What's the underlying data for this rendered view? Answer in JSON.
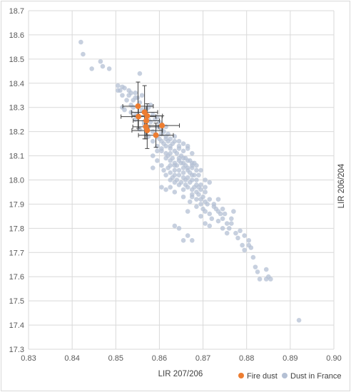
{
  "chart_data": {
    "type": "scatter",
    "xlabel": "LIR 207/206",
    "ylabel": "LIR 206/204",
    "xlim": [
      0.83,
      0.9
    ],
    "ylim": [
      17.3,
      18.7
    ],
    "x_ticks": [
      "0.83",
      "0.84",
      "0.85",
      "0.86",
      "0.87",
      "0.88",
      "0.89",
      "0.90"
    ],
    "y_ticks": [
      "17.3",
      "17.4",
      "17.5",
      "17.6",
      "17.7",
      "17.8",
      "17.9",
      "18.0",
      "18.1",
      "18.2",
      "18.3",
      "18.4",
      "18.5",
      "18.6",
      "18.7"
    ],
    "grid": true,
    "legend_position": "bottom-right",
    "colors": {
      "fire_dust": "#ed7d31",
      "dust_in_france": "#b4c0d4",
      "error_bar": "#404040",
      "grid": "#d9d9d9"
    },
    "series": [
      {
        "name": "Fire dust",
        "points": [
          [
            0.8551,
            18.305,
            0.0035,
            0.1
          ],
          [
            0.8566,
            18.28,
            0.003,
            0.11
          ],
          [
            0.8552,
            18.262,
            0.004,
            0.048
          ],
          [
            0.8572,
            18.265,
            0.0035,
            0.05
          ],
          [
            0.857,
            18.245,
            0.003,
            0.06
          ],
          [
            0.8569,
            18.22,
            0.003,
            0.05
          ],
          [
            0.8572,
            18.205,
            0.0035,
            0.075
          ],
          [
            0.8606,
            18.225,
            0.004,
            0.04
          ],
          [
            0.8592,
            18.185,
            0.004,
            0.05
          ]
        ]
      },
      {
        "name": "Dust in France",
        "points": [
          [
            0.842,
            18.57
          ],
          [
            0.8425,
            18.52
          ],
          [
            0.8445,
            18.46
          ],
          [
            0.8465,
            18.49
          ],
          [
            0.847,
            18.47
          ],
          [
            0.8485,
            18.46
          ],
          [
            0.8505,
            18.39
          ],
          [
            0.851,
            18.37
          ],
          [
            0.8515,
            18.385
          ],
          [
            0.852,
            18.38
          ],
          [
            0.853,
            18.37
          ],
          [
            0.853,
            18.35
          ],
          [
            0.854,
            18.33
          ],
          [
            0.854,
            18.3
          ],
          [
            0.8555,
            18.44
          ],
          [
            0.855,
            18.34
          ],
          [
            0.8555,
            18.32
          ],
          [
            0.856,
            18.35
          ],
          [
            0.8545,
            18.36
          ],
          [
            0.8515,
            18.3
          ],
          [
            0.852,
            18.29
          ],
          [
            0.8575,
            18.3
          ],
          [
            0.858,
            18.31
          ],
          [
            0.857,
            18.29
          ],
          [
            0.8535,
            18.28
          ],
          [
            0.856,
            18.29
          ],
          [
            0.8575,
            18.25
          ],
          [
            0.8585,
            18.27
          ],
          [
            0.859,
            18.25
          ],
          [
            0.858,
            18.24
          ],
          [
            0.8595,
            18.22
          ],
          [
            0.86,
            18.24
          ],
          [
            0.8605,
            18.21
          ],
          [
            0.861,
            18.2
          ],
          [
            0.8585,
            18.2
          ],
          [
            0.862,
            18.19
          ],
          [
            0.8595,
            18.18
          ],
          [
            0.86,
            18.17
          ],
          [
            0.8605,
            18.16
          ],
          [
            0.861,
            18.15
          ],
          [
            0.8615,
            18.14
          ],
          [
            0.862,
            18.16
          ],
          [
            0.8625,
            18.13
          ],
          [
            0.863,
            18.15
          ],
          [
            0.8635,
            18.12
          ],
          [
            0.862,
            18.1
          ],
          [
            0.863,
            18.09
          ],
          [
            0.864,
            18.11
          ],
          [
            0.8645,
            18.08
          ],
          [
            0.864,
            18.06
          ],
          [
            0.865,
            18.07
          ],
          [
            0.8655,
            18.05
          ],
          [
            0.866,
            18.06
          ],
          [
            0.8665,
            18.04
          ],
          [
            0.867,
            18.03
          ],
          [
            0.8675,
            18.05
          ],
          [
            0.868,
            18.02
          ],
          [
            0.8645,
            18.13
          ],
          [
            0.865,
            18.1
          ],
          [
            0.8665,
            18.13
          ],
          [
            0.866,
            18.09
          ],
          [
            0.867,
            18.08
          ],
          [
            0.8675,
            18.06
          ],
          [
            0.868,
            18.07
          ],
          [
            0.8685,
            18.04
          ],
          [
            0.869,
            18.02
          ],
          [
            0.862,
            18.05
          ],
          [
            0.8625,
            18.03
          ],
          [
            0.863,
            18.01
          ],
          [
            0.8635,
            18.04
          ],
          [
            0.864,
            18.0
          ],
          [
            0.8645,
            18.02
          ],
          [
            0.865,
            17.99
          ],
          [
            0.8655,
            18.01
          ],
          [
            0.866,
            17.98
          ],
          [
            0.8665,
            17.97
          ],
          [
            0.867,
            17.99
          ],
          [
            0.8675,
            17.96
          ],
          [
            0.868,
            17.97
          ],
          [
            0.8685,
            17.95
          ],
          [
            0.869,
            17.94
          ],
          [
            0.8695,
            17.96
          ],
          [
            0.87,
            17.93
          ],
          [
            0.8705,
            17.95
          ],
          [
            0.8715,
            17.92
          ],
          [
            0.871,
            17.9
          ],
          [
            0.87,
            17.88
          ],
          [
            0.8695,
            17.9
          ],
          [
            0.8725,
            17.89
          ],
          [
            0.873,
            17.88
          ],
          [
            0.8735,
            17.92
          ],
          [
            0.874,
            17.86
          ],
          [
            0.8745,
            17.84
          ],
          [
            0.875,
            17.86
          ],
          [
            0.8755,
            17.82
          ],
          [
            0.876,
            17.8
          ],
          [
            0.8765,
            17.84
          ],
          [
            0.877,
            17.87
          ],
          [
            0.8775,
            17.78
          ],
          [
            0.878,
            17.76
          ],
          [
            0.879,
            17.73
          ],
          [
            0.8795,
            17.71
          ],
          [
            0.8805,
            17.73
          ],
          [
            0.881,
            17.72
          ],
          [
            0.8815,
            17.68
          ],
          [
            0.882,
            17.64
          ],
          [
            0.8825,
            17.62
          ],
          [
            0.883,
            17.59
          ],
          [
            0.8845,
            17.63
          ],
          [
            0.8845,
            17.59
          ],
          [
            0.885,
            17.6
          ],
          [
            0.8855,
            17.59
          ],
          [
            0.892,
            17.42
          ],
          [
            0.8635,
            17.81
          ],
          [
            0.8645,
            17.8
          ],
          [
            0.8665,
            17.77
          ],
          [
            0.8655,
            17.75
          ],
          [
            0.8675,
            17.75
          ],
          [
            0.8705,
            17.82
          ],
          [
            0.8715,
            17.81
          ],
          [
            0.8585,
            18.1
          ],
          [
            0.8595,
            18.08
          ],
          [
            0.8605,
            18.06
          ],
          [
            0.861,
            18.04
          ],
          [
            0.8615,
            18.02
          ],
          [
            0.8625,
            17.97
          ],
          [
            0.8635,
            17.95
          ],
          [
            0.8655,
            17.93
          ],
          [
            0.867,
            17.91
          ],
          [
            0.8685,
            17.89
          ],
          [
            0.8665,
            17.87
          ],
          [
            0.8695,
            17.85
          ],
          [
            0.8705,
            17.87
          ],
          [
            0.872,
            17.84
          ],
          [
            0.8735,
            17.83
          ],
          [
            0.8745,
            17.8
          ],
          [
            0.866,
            18.0
          ],
          [
            0.8635,
            18.07
          ],
          [
            0.8615,
            18.09
          ],
          [
            0.8625,
            18.11
          ],
          [
            0.8605,
            18.13
          ],
          [
            0.8595,
            18.14
          ],
          [
            0.8585,
            18.16
          ],
          [
            0.8575,
            18.18
          ],
          [
            0.857,
            18.2
          ],
          [
            0.8565,
            18.23
          ],
          [
            0.8555,
            18.21
          ],
          [
            0.8545,
            18.25
          ],
          [
            0.855,
            18.27
          ],
          [
            0.8535,
            18.31
          ],
          [
            0.8525,
            18.33
          ],
          [
            0.8515,
            18.35
          ],
          [
            0.8505,
            18.37
          ],
          [
            0.8535,
            18.36
          ],
          [
            0.8545,
            18.34
          ],
          [
            0.8575,
            18.22
          ],
          [
            0.8605,
            18.19
          ],
          [
            0.8615,
            18.17
          ],
          [
            0.8625,
            18.14
          ],
          [
            0.8645,
            18.09
          ],
          [
            0.8655,
            18.07
          ],
          [
            0.8675,
            18.02
          ],
          [
            0.8685,
            18.0
          ],
          [
            0.8695,
            17.98
          ],
          [
            0.8705,
            17.97
          ],
          [
            0.8655,
            18.12
          ],
          [
            0.8665,
            18.14
          ],
          [
            0.8675,
            18.11
          ],
          [
            0.8605,
            18.12
          ],
          [
            0.8615,
            18.11
          ],
          [
            0.8625,
            18.08
          ],
          [
            0.8635,
            18.06
          ],
          [
            0.8645,
            18.04
          ],
          [
            0.8655,
            18.03
          ],
          [
            0.8665,
            18.01
          ],
          [
            0.8675,
            18.0
          ],
          [
            0.8685,
            17.98
          ],
          [
            0.869,
            17.97
          ],
          [
            0.8655,
            17.96
          ],
          [
            0.8675,
            17.94
          ],
          [
            0.8695,
            17.92
          ],
          [
            0.8725,
            17.9
          ],
          [
            0.8745,
            17.88
          ],
          [
            0.8585,
            18.05
          ],
          [
            0.8595,
            18.12
          ],
          [
            0.8615,
            18.22
          ],
          [
            0.8635,
            18.18
          ],
          [
            0.8645,
            18.16
          ],
          [
            0.8655,
            18.15
          ],
          [
            0.8635,
            18.02
          ],
          [
            0.8625,
            18.0
          ],
          [
            0.8615,
            17.96
          ],
          [
            0.8605,
            17.97
          ],
          [
            0.8675,
            17.93
          ],
          [
            0.8685,
            17.92
          ],
          [
            0.8705,
            17.91
          ],
          [
            0.8735,
            17.87
          ],
          [
            0.8765,
            17.82
          ],
          [
            0.8785,
            17.79
          ],
          [
            0.8805,
            17.75
          ],
          [
            0.8795,
            17.77
          ],
          [
            0.8755,
            17.78
          ],
          [
            0.8715,
            17.86
          ],
          [
            0.8625,
            18.06
          ],
          [
            0.8665,
            18.05
          ],
          [
            0.8685,
            18.06
          ],
          [
            0.8695,
            18.04
          ],
          [
            0.8645,
            17.98
          ],
          [
            0.8635,
            17.99
          ],
          [
            0.8655,
            18.09
          ],
          [
            0.8665,
            18.08
          ],
          [
            0.8675,
            18.07
          ],
          [
            0.8705,
            18.0
          ],
          [
            0.8715,
            17.99
          ],
          [
            0.8625,
            18.17
          ],
          [
            0.8635,
            18.16
          ],
          [
            0.8645,
            18.14
          ],
          [
            0.8615,
            18.18
          ],
          [
            0.8605,
            18.23
          ],
          [
            0.8595,
            18.26
          ],
          [
            0.8565,
            18.24
          ],
          [
            0.8545,
            18.27
          ]
        ]
      }
    ]
  }
}
